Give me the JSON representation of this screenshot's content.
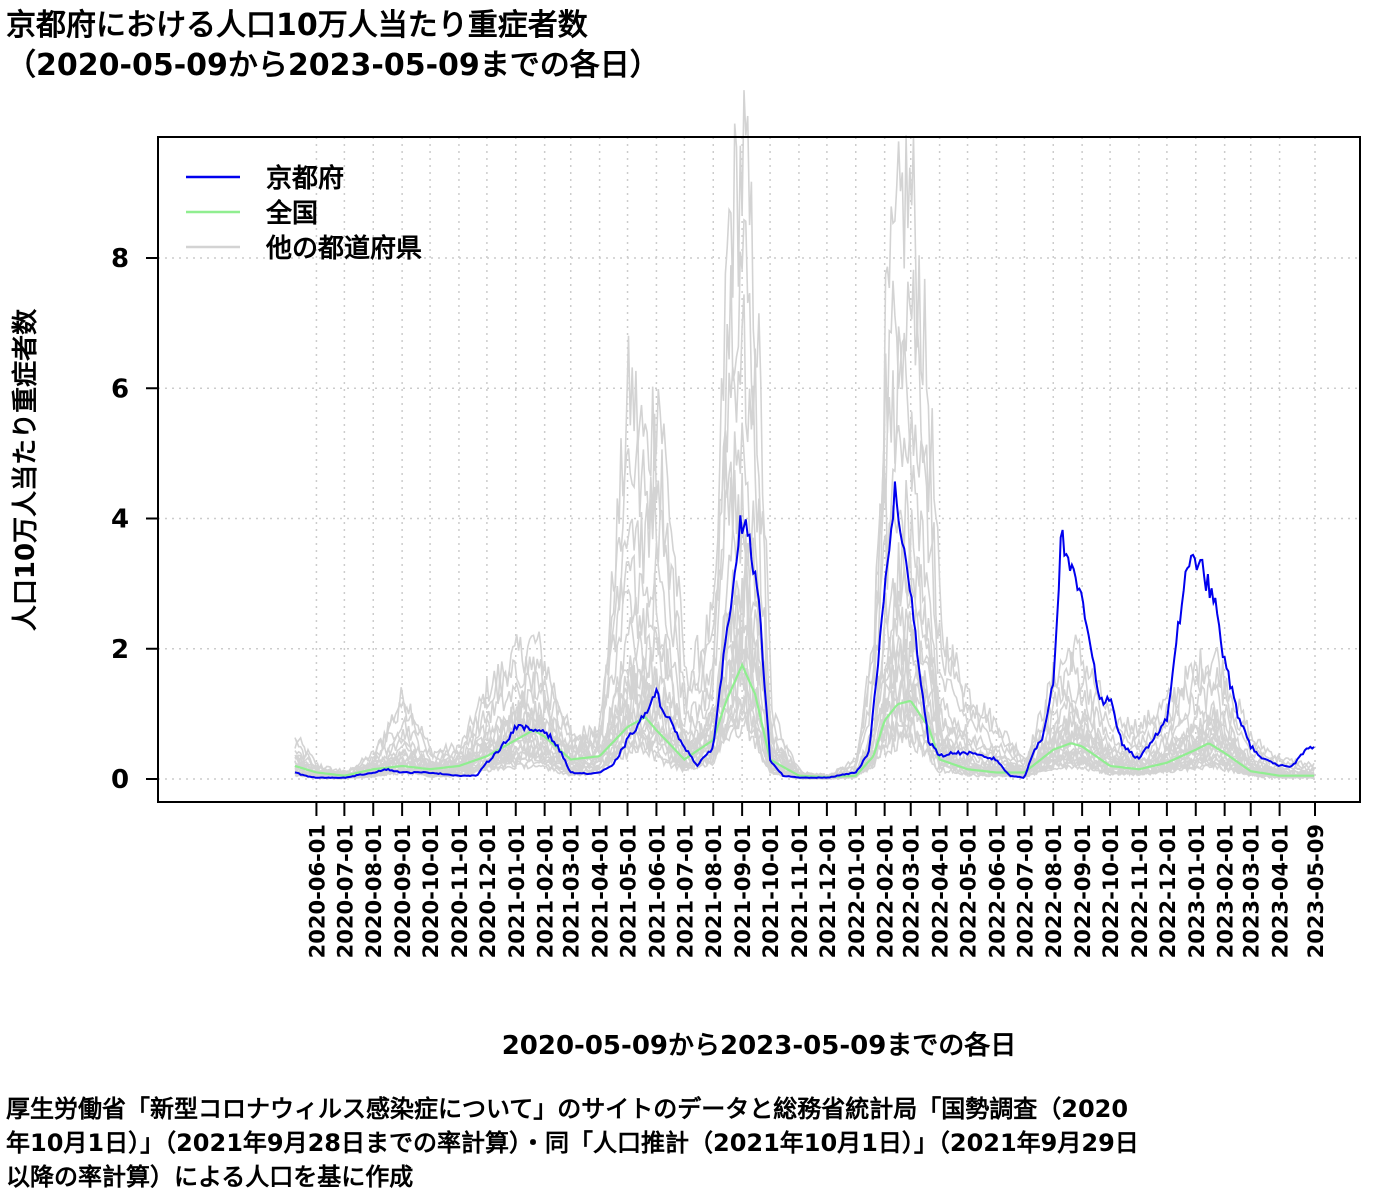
{
  "title_line1": "京都府における人口10万人当たり重症者数",
  "title_line2": "（2020-05-09から2023-05-09までの各日）",
  "footer_lines": [
    "厚生労働省「新型コロナウィルス感染症について」のサイトのデータと総務省統計局「国勢調査（2020",
    "年10月1日）」（2021年9月28日までの率計算）・同「人口推計（2021年10月1日）」（2021年9月29日",
    "以降の率計算）による人口を基に作成"
  ],
  "chart_data": {
    "type": "line",
    "xlabel": "2020-05-09から2023-05-09までの各日",
    "ylabel": "人口10万人当たり重症者数",
    "xlim": [
      "2020-05-09",
      "2023-05-09"
    ],
    "ylim": [
      0,
      9.5
    ],
    "yticks": [
      0,
      2,
      4,
      6,
      8
    ],
    "grid": true,
    "legend_position": "top-left",
    "x_tick_labels": [
      "2020-06-01",
      "2020-07-01",
      "2020-08-01",
      "2020-09-01",
      "2020-10-01",
      "2020-11-01",
      "2020-12-01",
      "2021-01-01",
      "2021-02-01",
      "2021-03-01",
      "2021-04-01",
      "2021-05-01",
      "2021-06-01",
      "2021-07-01",
      "2021-08-01",
      "2021-09-01",
      "2021-10-01",
      "2021-11-01",
      "2021-12-01",
      "2022-01-01",
      "2022-02-01",
      "2022-03-01",
      "2022-04-01",
      "2022-05-01",
      "2022-06-01",
      "2022-07-01",
      "2022-08-01",
      "2022-09-01",
      "2022-10-01",
      "2022-11-01",
      "2022-12-01",
      "2023-01-01",
      "2023-02-01",
      "2023-03-01",
      "2023-04-01",
      "2023-05-09"
    ],
    "series": [
      {
        "name": "京都府",
        "color": "#0000ee",
        "x": [
          "2020-05-09",
          "2020-05-20",
          "2020-06-01",
          "2020-07-01",
          "2020-08-01",
          "2020-08-15",
          "2020-09-01",
          "2020-10-01",
          "2020-11-01",
          "2020-11-20",
          "2020-12-01",
          "2020-12-20",
          "2021-01-01",
          "2021-01-20",
          "2021-02-01",
          "2021-02-15",
          "2021-03-01",
          "2021-03-20",
          "2021-04-01",
          "2021-04-15",
          "2021-05-01",
          "2021-05-20",
          "2021-06-01",
          "2021-06-15",
          "2021-07-01",
          "2021-07-15",
          "2021-08-01",
          "2021-08-15",
          "2021-08-25",
          "2021-09-01",
          "2021-09-10",
          "2021-09-20",
          "2021-10-01",
          "2021-10-15",
          "2021-11-01",
          "2021-12-01",
          "2022-01-01",
          "2022-01-15",
          "2022-01-25",
          "2022-02-05",
          "2022-02-12",
          "2022-02-20",
          "2022-03-01",
          "2022-03-10",
          "2022-03-20",
          "2022-04-01",
          "2022-04-15",
          "2022-05-01",
          "2022-06-01",
          "2022-06-15",
          "2022-07-01",
          "2022-07-10",
          "2022-07-20",
          "2022-08-01",
          "2022-08-10",
          "2022-08-20",
          "2022-09-01",
          "2022-09-10",
          "2022-09-20",
          "2022-10-01",
          "2022-10-15",
          "2022-11-01",
          "2022-11-15",
          "2022-12-01",
          "2022-12-10",
          "2022-12-20",
          "2023-01-01",
          "2023-01-10",
          "2023-01-20",
          "2023-02-01",
          "2023-02-15",
          "2023-03-01",
          "2023-03-15",
          "2023-04-01",
          "2023-04-15",
          "2023-05-01",
          "2023-05-09"
        ],
        "y": [
          0.1,
          0.05,
          0.02,
          0.02,
          0.1,
          0.15,
          0.1,
          0.1,
          0.05,
          0.05,
          0.25,
          0.55,
          0.8,
          0.75,
          0.75,
          0.5,
          0.1,
          0.08,
          0.1,
          0.2,
          0.6,
          1.0,
          1.3,
          0.9,
          0.5,
          0.2,
          0.5,
          2.2,
          3.4,
          4.0,
          3.5,
          2.5,
          0.3,
          0.05,
          0.02,
          0.02,
          0.1,
          0.4,
          1.8,
          3.5,
          4.4,
          3.5,
          3.0,
          1.7,
          0.6,
          0.35,
          0.4,
          0.4,
          0.3,
          0.05,
          0.02,
          0.4,
          0.6,
          1.5,
          3.8,
          3.2,
          2.8,
          2.1,
          1.2,
          1.2,
          0.5,
          0.3,
          0.6,
          0.9,
          2.0,
          3.0,
          3.45,
          3.1,
          2.8,
          1.8,
          1.0,
          0.5,
          0.3,
          0.2,
          0.2,
          0.5,
          0.5
        ]
      },
      {
        "name": "全国",
        "color": "#90ee90",
        "x": [
          "2020-05-09",
          "2020-06-01",
          "2020-07-01",
          "2020-08-01",
          "2020-09-01",
          "2020-10-01",
          "2020-11-01",
          "2020-12-01",
          "2021-01-01",
          "2021-01-20",
          "2021-02-01",
          "2021-03-01",
          "2021-04-01",
          "2021-05-01",
          "2021-05-20",
          "2021-06-01",
          "2021-07-01",
          "2021-08-01",
          "2021-08-15",
          "2021-09-01",
          "2021-09-15",
          "2021-10-01",
          "2021-11-01",
          "2021-12-01",
          "2022-01-01",
          "2022-01-20",
          "2022-02-01",
          "2022-02-15",
          "2022-03-01",
          "2022-03-20",
          "2022-04-01",
          "2022-05-01",
          "2022-06-01",
          "2022-07-01",
          "2022-08-01",
          "2022-08-20",
          "2022-09-01",
          "2022-10-01",
          "2022-11-01",
          "2022-12-01",
          "2023-01-01",
          "2023-01-15",
          "2023-02-01",
          "2023-03-01",
          "2023-04-01",
          "2023-05-09"
        ],
        "y": [
          0.2,
          0.1,
          0.05,
          0.15,
          0.2,
          0.15,
          0.2,
          0.35,
          0.6,
          0.75,
          0.65,
          0.3,
          0.35,
          0.8,
          0.95,
          0.75,
          0.3,
          0.6,
          1.2,
          1.75,
          1.3,
          0.3,
          0.05,
          0.03,
          0.05,
          0.35,
          0.9,
          1.15,
          1.2,
          0.8,
          0.3,
          0.15,
          0.1,
          0.1,
          0.45,
          0.55,
          0.5,
          0.2,
          0.15,
          0.25,
          0.45,
          0.55,
          0.4,
          0.12,
          0.05,
          0.05
        ]
      },
      {
        "name": "他の都道府県",
        "color": "#d3d3d3",
        "x": [
          "2020-05-09",
          "2020-06-01",
          "2020-07-01",
          "2020-08-01",
          "2020-09-01",
          "2020-10-01",
          "2020-11-01",
          "2020-12-01",
          "2021-01-01",
          "2021-01-20",
          "2021-02-01",
          "2021-03-01",
          "2021-04-01",
          "2021-05-01",
          "2021-05-20",
          "2021-06-01",
          "2021-07-01",
          "2021-08-01",
          "2021-08-15",
          "2021-09-01",
          "2021-09-15",
          "2021-10-01",
          "2021-11-01",
          "2021-12-01",
          "2022-01-01",
          "2022-01-20",
          "2022-02-01",
          "2022-02-20",
          "2022-03-01",
          "2022-03-20",
          "2022-04-01",
          "2022-05-01",
          "2022-06-01",
          "2022-07-01",
          "2022-08-01",
          "2022-08-20",
          "2022-09-01",
          "2022-10-01",
          "2022-11-01",
          "2022-12-01",
          "2023-01-01",
          "2023-01-20",
          "2023-02-01",
          "2023-03-01",
          "2023-04-01",
          "2023-05-09"
        ],
        "y": [
          0.6,
          0.2,
          0.1,
          0.4,
          1.3,
          0.4,
          0.5,
          1.4,
          1.9,
          2.1,
          1.7,
          0.6,
          0.9,
          6.0,
          5.0,
          6.0,
          1.5,
          2.5,
          8.3,
          9.5,
          7.0,
          1.0,
          0.1,
          0.05,
          0.3,
          2.5,
          7.0,
          9.0,
          8.8,
          5.5,
          2.2,
          1.3,
          0.8,
          0.3,
          1.6,
          2.0,
          1.8,
          0.9,
          0.8,
          1.2,
          1.7,
          1.9,
          1.5,
          0.6,
          0.3,
          0.2
        ]
      }
    ]
  }
}
